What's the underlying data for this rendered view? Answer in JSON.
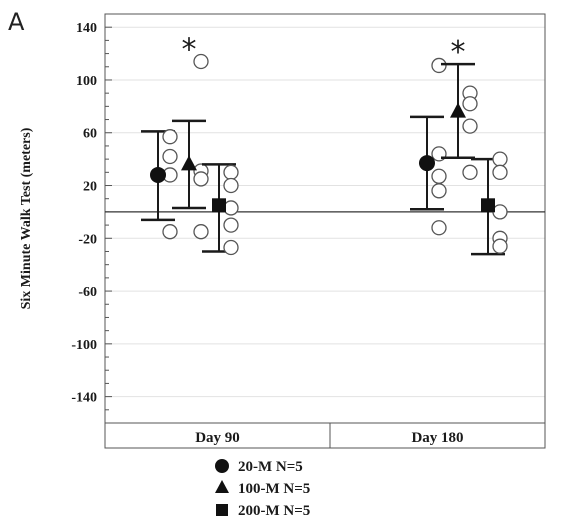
{
  "panel_letter": "A",
  "chart_data": {
    "type": "scatter",
    "ylabel": "Six Minute Walk Test (meters)",
    "ylim": [
      -160,
      150
    ],
    "yticks": [
      140,
      100,
      60,
      20,
      -20,
      -60,
      -100,
      -140
    ],
    "reference_line_y": 0,
    "grid": "horizontal",
    "categories": [
      "Day 90",
      "Day 180"
    ],
    "legend_position": "bottom",
    "series": [
      {
        "name": "20-M N=5",
        "marker": "circle",
        "mean": [
          28,
          37
        ],
        "error_low": [
          -6,
          2
        ],
        "error_high": [
          61,
          72
        ],
        "individual": [
          [
            57,
            42,
            28,
            -15
          ],
          [
            111,
            44,
            27,
            16,
            -12
          ]
        ],
        "significant": [
          false,
          false
        ]
      },
      {
        "name": "100-M N=5",
        "marker": "triangle",
        "mean": [
          36,
          76
        ],
        "error_low": [
          3,
          41
        ],
        "error_high": [
          69,
          112
        ],
        "individual": [
          [
            114,
            31,
            25,
            -15
          ],
          [
            90,
            82,
            65,
            30
          ]
        ],
        "significant": [
          true,
          true
        ]
      },
      {
        "name": "200-M N=5",
        "marker": "square",
        "mean": [
          5,
          5
        ],
        "error_low": [
          -30,
          -32
        ],
        "error_high": [
          36,
          40
        ],
        "individual": [
          [
            30,
            20,
            3,
            -10,
            -27
          ],
          [
            40,
            30,
            0,
            -20,
            -26
          ]
        ],
        "significant": [
          false,
          false
        ]
      }
    ],
    "significance_marker": "*"
  }
}
